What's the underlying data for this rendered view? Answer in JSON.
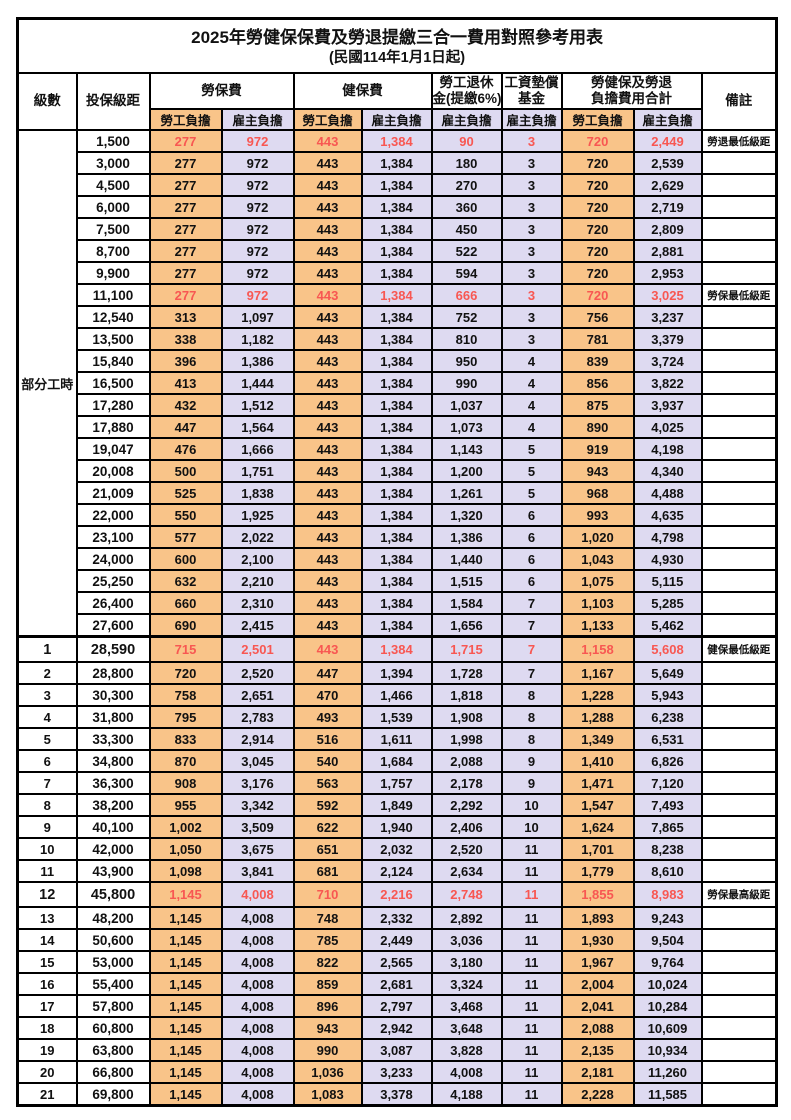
{
  "title": "2025年勞健保保費及勞退提繳三合一費用對照參考用表",
  "subtitle": "(民國114年1月1日起)",
  "colors": {
    "employee_bg": "#F9C489",
    "employer_bg": "#DEDAF1",
    "highlight_red": "#F85752",
    "border": "#000000"
  },
  "header": {
    "level": "級數",
    "bracket": "投保級距",
    "labor_fee": "勞保費",
    "health_fee": "健保費",
    "pension_line1": "勞工退休",
    "pension_line2": "金(提繳6%)",
    "wage_fund_line1": "工資墊償",
    "wage_fund_line2": "基金",
    "total_line1": "勞健保及勞退",
    "total_line2": "負擔費用合計",
    "remark": "備註",
    "employee": "勞工負擔",
    "employer": "雇主負擔"
  },
  "table": {
    "part_time_label": "部分工時",
    "value_columns": [
      "labor-employee",
      "labor-employer",
      "health-employee",
      "health-employer",
      "pension-employer",
      "wage-fund-employer",
      "total-employee",
      "total-employer"
    ],
    "rows": [
      {
        "lv": "",
        "br": "1,500",
        "v": [
          "277",
          "972",
          "443",
          "1,384",
          "90",
          "3",
          "720",
          "2,449"
        ],
        "note": "勞退最低級距",
        "red": true,
        "bold": false
      },
      {
        "lv": "",
        "br": "3,000",
        "v": [
          "277",
          "972",
          "443",
          "1,384",
          "180",
          "3",
          "720",
          "2,539"
        ],
        "note": "",
        "red": false,
        "bold": false
      },
      {
        "lv": "",
        "br": "4,500",
        "v": [
          "277",
          "972",
          "443",
          "1,384",
          "270",
          "3",
          "720",
          "2,629"
        ],
        "note": "",
        "red": false,
        "bold": false
      },
      {
        "lv": "",
        "br": "6,000",
        "v": [
          "277",
          "972",
          "443",
          "1,384",
          "360",
          "3",
          "720",
          "2,719"
        ],
        "note": "",
        "red": false,
        "bold": false
      },
      {
        "lv": "",
        "br": "7,500",
        "v": [
          "277",
          "972",
          "443",
          "1,384",
          "450",
          "3",
          "720",
          "2,809"
        ],
        "note": "",
        "red": false,
        "bold": false
      },
      {
        "lv": "",
        "br": "8,700",
        "v": [
          "277",
          "972",
          "443",
          "1,384",
          "522",
          "3",
          "720",
          "2,881"
        ],
        "note": "",
        "red": false,
        "bold": false
      },
      {
        "lv": "",
        "br": "9,900",
        "v": [
          "277",
          "972",
          "443",
          "1,384",
          "594",
          "3",
          "720",
          "2,953"
        ],
        "note": "",
        "red": false,
        "bold": false
      },
      {
        "lv": "",
        "br": "11,100",
        "v": [
          "277",
          "972",
          "443",
          "1,384",
          "666",
          "3",
          "720",
          "3,025"
        ],
        "note": "勞保最低級距",
        "red": true,
        "bold": false
      },
      {
        "lv": "",
        "br": "12,540",
        "v": [
          "313",
          "1,097",
          "443",
          "1,384",
          "752",
          "3",
          "756",
          "3,237"
        ],
        "note": "",
        "red": false,
        "bold": false
      },
      {
        "lv": "",
        "br": "13,500",
        "v": [
          "338",
          "1,182",
          "443",
          "1,384",
          "810",
          "3",
          "781",
          "3,379"
        ],
        "note": "",
        "red": false,
        "bold": false
      },
      {
        "lv": "",
        "br": "15,840",
        "v": [
          "396",
          "1,386",
          "443",
          "1,384",
          "950",
          "4",
          "839",
          "3,724"
        ],
        "note": "",
        "red": false,
        "bold": false
      },
      {
        "lv": "",
        "br": "16,500",
        "v": [
          "413",
          "1,444",
          "443",
          "1,384",
          "990",
          "4",
          "856",
          "3,822"
        ],
        "note": "",
        "red": false,
        "bold": false
      },
      {
        "lv": "",
        "br": "17,280",
        "v": [
          "432",
          "1,512",
          "443",
          "1,384",
          "1,037",
          "4",
          "875",
          "3,937"
        ],
        "note": "",
        "red": false,
        "bold": false
      },
      {
        "lv": "",
        "br": "17,880",
        "v": [
          "447",
          "1,564",
          "443",
          "1,384",
          "1,073",
          "4",
          "890",
          "4,025"
        ],
        "note": "",
        "red": false,
        "bold": false
      },
      {
        "lv": "",
        "br": "19,047",
        "v": [
          "476",
          "1,666",
          "443",
          "1,384",
          "1,143",
          "5",
          "919",
          "4,198"
        ],
        "note": "",
        "red": false,
        "bold": false
      },
      {
        "lv": "",
        "br": "20,008",
        "v": [
          "500",
          "1,751",
          "443",
          "1,384",
          "1,200",
          "5",
          "943",
          "4,340"
        ],
        "note": "",
        "red": false,
        "bold": false
      },
      {
        "lv": "",
        "br": "21,009",
        "v": [
          "525",
          "1,838",
          "443",
          "1,384",
          "1,261",
          "5",
          "968",
          "4,488"
        ],
        "note": "",
        "red": false,
        "bold": false
      },
      {
        "lv": "",
        "br": "22,000",
        "v": [
          "550",
          "1,925",
          "443",
          "1,384",
          "1,320",
          "6",
          "993",
          "4,635"
        ],
        "note": "",
        "red": false,
        "bold": false
      },
      {
        "lv": "",
        "br": "23,100",
        "v": [
          "577",
          "2,022",
          "443",
          "1,384",
          "1,386",
          "6",
          "1,020",
          "4,798"
        ],
        "note": "",
        "red": false,
        "bold": false
      },
      {
        "lv": "",
        "br": "24,000",
        "v": [
          "600",
          "2,100",
          "443",
          "1,384",
          "1,440",
          "6",
          "1,043",
          "4,930"
        ],
        "note": "",
        "red": false,
        "bold": false
      },
      {
        "lv": "",
        "br": "25,250",
        "v": [
          "632",
          "2,210",
          "443",
          "1,384",
          "1,515",
          "6",
          "1,075",
          "5,115"
        ],
        "note": "",
        "red": false,
        "bold": false
      },
      {
        "lv": "",
        "br": "26,400",
        "v": [
          "660",
          "2,310",
          "443",
          "1,384",
          "1,584",
          "7",
          "1,103",
          "5,285"
        ],
        "note": "",
        "red": false,
        "bold": false
      },
      {
        "lv": "",
        "br": "27,600",
        "v": [
          "690",
          "2,415",
          "443",
          "1,384",
          "1,656",
          "7",
          "1,133",
          "5,462"
        ],
        "note": "",
        "red": false,
        "bold": false
      },
      {
        "lv": "1",
        "br": "28,590",
        "v": [
          "715",
          "2,501",
          "443",
          "1,384",
          "1,715",
          "7",
          "1,158",
          "5,608"
        ],
        "note": "健保最低級距",
        "red": true,
        "bold": true
      },
      {
        "lv": "2",
        "br": "28,800",
        "v": [
          "720",
          "2,520",
          "447",
          "1,394",
          "1,728",
          "7",
          "1,167",
          "5,649"
        ],
        "note": "",
        "red": false,
        "bold": false
      },
      {
        "lv": "3",
        "br": "30,300",
        "v": [
          "758",
          "2,651",
          "470",
          "1,466",
          "1,818",
          "8",
          "1,228",
          "5,943"
        ],
        "note": "",
        "red": false,
        "bold": false
      },
      {
        "lv": "4",
        "br": "31,800",
        "v": [
          "795",
          "2,783",
          "493",
          "1,539",
          "1,908",
          "8",
          "1,288",
          "6,238"
        ],
        "note": "",
        "red": false,
        "bold": false
      },
      {
        "lv": "5",
        "br": "33,300",
        "v": [
          "833",
          "2,914",
          "516",
          "1,611",
          "1,998",
          "8",
          "1,349",
          "6,531"
        ],
        "note": "",
        "red": false,
        "bold": false
      },
      {
        "lv": "6",
        "br": "34,800",
        "v": [
          "870",
          "3,045",
          "540",
          "1,684",
          "2,088",
          "9",
          "1,410",
          "6,826"
        ],
        "note": "",
        "red": false,
        "bold": false
      },
      {
        "lv": "7",
        "br": "36,300",
        "v": [
          "908",
          "3,176",
          "563",
          "1,757",
          "2,178",
          "9",
          "1,471",
          "7,120"
        ],
        "note": "",
        "red": false,
        "bold": false
      },
      {
        "lv": "8",
        "br": "38,200",
        "v": [
          "955",
          "3,342",
          "592",
          "1,849",
          "2,292",
          "10",
          "1,547",
          "7,493"
        ],
        "note": "",
        "red": false,
        "bold": false
      },
      {
        "lv": "9",
        "br": "40,100",
        "v": [
          "1,002",
          "3,509",
          "622",
          "1,940",
          "2,406",
          "10",
          "1,624",
          "7,865"
        ],
        "note": "",
        "red": false,
        "bold": false
      },
      {
        "lv": "10",
        "br": "42,000",
        "v": [
          "1,050",
          "3,675",
          "651",
          "2,032",
          "2,520",
          "11",
          "1,701",
          "8,238"
        ],
        "note": "",
        "red": false,
        "bold": false
      },
      {
        "lv": "11",
        "br": "43,900",
        "v": [
          "1,098",
          "3,841",
          "681",
          "2,124",
          "2,634",
          "11",
          "1,779",
          "8,610"
        ],
        "note": "",
        "red": false,
        "bold": false
      },
      {
        "lv": "12",
        "br": "45,800",
        "v": [
          "1,145",
          "4,008",
          "710",
          "2,216",
          "2,748",
          "11",
          "1,855",
          "8,983"
        ],
        "note": "勞保最高級距",
        "red": true,
        "bold": true
      },
      {
        "lv": "13",
        "br": "48,200",
        "v": [
          "1,145",
          "4,008",
          "748",
          "2,332",
          "2,892",
          "11",
          "1,893",
          "9,243"
        ],
        "note": "",
        "red": false,
        "bold": false
      },
      {
        "lv": "14",
        "br": "50,600",
        "v": [
          "1,145",
          "4,008",
          "785",
          "2,449",
          "3,036",
          "11",
          "1,930",
          "9,504"
        ],
        "note": "",
        "red": false,
        "bold": false
      },
      {
        "lv": "15",
        "br": "53,000",
        "v": [
          "1,145",
          "4,008",
          "822",
          "2,565",
          "3,180",
          "11",
          "1,967",
          "9,764"
        ],
        "note": "",
        "red": false,
        "bold": false
      },
      {
        "lv": "16",
        "br": "55,400",
        "v": [
          "1,145",
          "4,008",
          "859",
          "2,681",
          "3,324",
          "11",
          "2,004",
          "10,024"
        ],
        "note": "",
        "red": false,
        "bold": false
      },
      {
        "lv": "17",
        "br": "57,800",
        "v": [
          "1,145",
          "4,008",
          "896",
          "2,797",
          "3,468",
          "11",
          "2,041",
          "10,284"
        ],
        "note": "",
        "red": false,
        "bold": false
      },
      {
        "lv": "18",
        "br": "60,800",
        "v": [
          "1,145",
          "4,008",
          "943",
          "2,942",
          "3,648",
          "11",
          "2,088",
          "10,609"
        ],
        "note": "",
        "red": false,
        "bold": false
      },
      {
        "lv": "19",
        "br": "63,800",
        "v": [
          "1,145",
          "4,008",
          "990",
          "3,087",
          "3,828",
          "11",
          "2,135",
          "10,934"
        ],
        "note": "",
        "red": false,
        "bold": false
      },
      {
        "lv": "20",
        "br": "66,800",
        "v": [
          "1,145",
          "4,008",
          "1,036",
          "3,233",
          "4,008",
          "11",
          "2,181",
          "11,260"
        ],
        "note": "",
        "red": false,
        "bold": false
      },
      {
        "lv": "21",
        "br": "69,800",
        "v": [
          "1,145",
          "4,008",
          "1,083",
          "3,378",
          "4,188",
          "11",
          "2,228",
          "11,585"
        ],
        "note": "",
        "red": false,
        "bold": false
      }
    ]
  }
}
